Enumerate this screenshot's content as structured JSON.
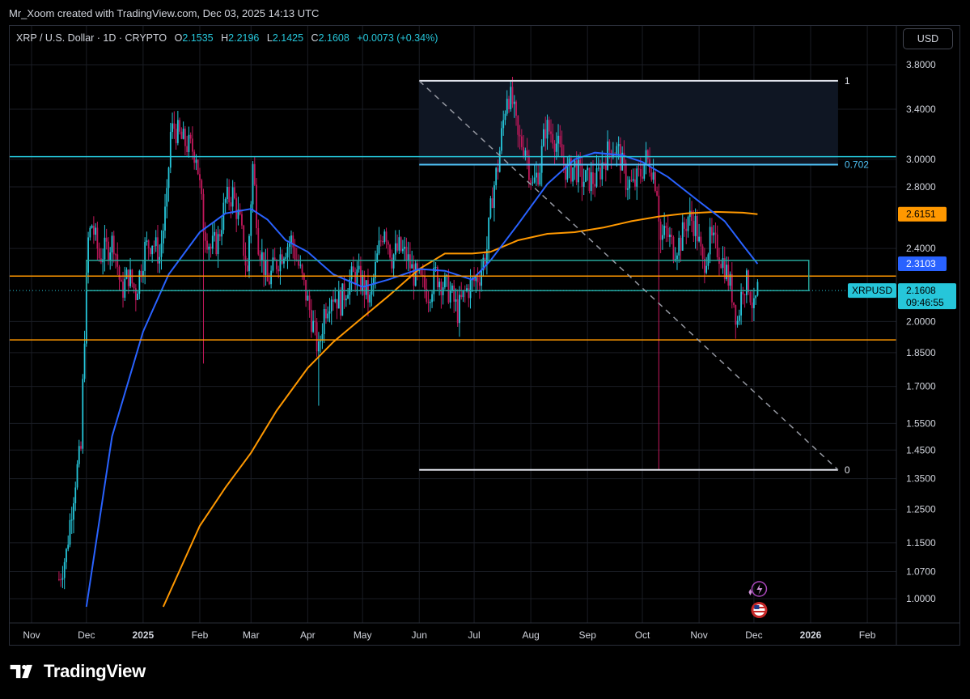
{
  "attribution": "Mr_Xoom created with TradingView.com, Dec 03, 2025 14:13 UTC",
  "header": {
    "symbol": "XRP / U.S. Dollar · 1D · CRYPTO",
    "o_label": "O",
    "o_value": "2.1535",
    "h_label": "H",
    "h_value": "2.2196",
    "l_label": "L",
    "l_value": "2.1425",
    "c_label": "C",
    "c_value": "2.1608",
    "change": "+0.0073 (+0.34%)"
  },
  "currency_button": "USD",
  "brand": "TradingView",
  "colors": {
    "bull": "#26c6da",
    "bear": "#c2185b",
    "ma_fast": "#2962ff",
    "ma_slow": "#ff9800",
    "grid": "#1a1d24",
    "text": "#d1d4dc",
    "fib": "#e0e3eb",
    "fib_702": "#4fc3f7",
    "box": "#26a69a"
  },
  "chart_data": {
    "type": "candlestick",
    "title": "XRP / U.S. Dollar · 1D · CRYPTO",
    "y_scale": "log",
    "ylim": [
      0.92,
      3.9
    ],
    "y_ticks": [
      "3.8000",
      "3.4000",
      "3.0000",
      "2.8000",
      "2.4000",
      "2.0000",
      "1.8500",
      "1.7000",
      "1.5500",
      "1.4500",
      "1.3500",
      "1.2500",
      "1.1500",
      "1.0700",
      "1.0000"
    ],
    "x_ticks": [
      {
        "label": "Nov",
        "date": "2024-11-01",
        "bold": false
      },
      {
        "label": "Dec",
        "date": "2024-12-01",
        "bold": false
      },
      {
        "label": "2025",
        "date": "2025-01-01",
        "bold": true
      },
      {
        "label": "Feb",
        "date": "2025-02-01",
        "bold": false
      },
      {
        "label": "Mar",
        "date": "2025-03-01",
        "bold": false
      },
      {
        "label": "Apr",
        "date": "2025-04-01",
        "bold": false
      },
      {
        "label": "May",
        "date": "2025-05-01",
        "bold": false
      },
      {
        "label": "Jun",
        "date": "2025-06-01",
        "bold": false
      },
      {
        "label": "Jul",
        "date": "2025-07-01",
        "bold": false
      },
      {
        "label": "Aug",
        "date": "2025-08-01",
        "bold": false
      },
      {
        "label": "Sep",
        "date": "2025-09-01",
        "bold": false
      },
      {
        "label": "Oct",
        "date": "2025-10-01",
        "bold": false
      },
      {
        "label": "Nov",
        "date": "2025-11-01",
        "bold": false
      },
      {
        "label": "Dec",
        "date": "2025-12-01",
        "bold": false
      },
      {
        "label": "2026",
        "date": "2026-01-01",
        "bold": true
      },
      {
        "label": "Feb",
        "date": "2026-02-01",
        "bold": false
      }
    ],
    "closes": [
      [
        "2024-11-16",
        1.05
      ],
      [
        "2024-11-20",
        1.12
      ],
      [
        "2024-11-25",
        1.35
      ],
      [
        "2024-11-28",
        1.45
      ],
      [
        "2024-12-02",
        2.45
      ],
      [
        "2024-12-04",
        2.55
      ],
      [
        "2024-12-08",
        2.35
      ],
      [
        "2024-12-12",
        2.4
      ],
      [
        "2024-12-16",
        2.45
      ],
      [
        "2024-12-20",
        2.15
      ],
      [
        "2024-12-24",
        2.25
      ],
      [
        "2024-12-28",
        2.15
      ],
      [
        "2025-01-02",
        2.4
      ],
      [
        "2025-01-06",
        2.45
      ],
      [
        "2025-01-10",
        2.35
      ],
      [
        "2025-01-14",
        2.7
      ],
      [
        "2025-01-16",
        3.2
      ],
      [
        "2025-01-18",
        3.25
      ],
      [
        "2025-01-22",
        3.15
      ],
      [
        "2025-01-26",
        3.1
      ],
      [
        "2025-01-30",
        3.05
      ],
      [
        "2025-02-03",
        2.55
      ],
      [
        "2025-02-07",
        2.4
      ],
      [
        "2025-02-11",
        2.45
      ],
      [
        "2025-02-15",
        2.7
      ],
      [
        "2025-02-19",
        2.75
      ],
      [
        "2025-02-23",
        2.55
      ],
      [
        "2025-02-27",
        2.25
      ],
      [
        "2025-03-02",
        2.95
      ],
      [
        "2025-03-05",
        2.45
      ],
      [
        "2025-03-10",
        2.2
      ],
      [
        "2025-03-14",
        2.3
      ],
      [
        "2025-03-19",
        2.4
      ],
      [
        "2025-03-23",
        2.45
      ],
      [
        "2025-03-27",
        2.3
      ],
      [
        "2025-04-01",
        2.1
      ],
      [
        "2025-04-07",
        1.85
      ],
      [
        "2025-04-10",
        2.05
      ],
      [
        "2025-04-14",
        2.15
      ],
      [
        "2025-04-19",
        2.1
      ],
      [
        "2025-04-23",
        2.2
      ],
      [
        "2025-04-27",
        2.25
      ],
      [
        "2025-05-01",
        2.2
      ],
      [
        "2025-05-05",
        2.1
      ],
      [
        "2025-05-10",
        2.4
      ],
      [
        "2025-05-13",
        2.55
      ],
      [
        "2025-05-17",
        2.35
      ],
      [
        "2025-05-21",
        2.4
      ],
      [
        "2025-05-25",
        2.35
      ],
      [
        "2025-05-29",
        2.25
      ],
      [
        "2025-06-02",
        2.2
      ],
      [
        "2025-06-06",
        2.15
      ],
      [
        "2025-06-10",
        2.25
      ],
      [
        "2025-06-14",
        2.2
      ],
      [
        "2025-06-18",
        2.15
      ],
      [
        "2025-06-22",
        2.05
      ],
      [
        "2025-06-26",
        2.15
      ],
      [
        "2025-06-30",
        2.2
      ],
      [
        "2025-07-04",
        2.25
      ],
      [
        "2025-07-08",
        2.4
      ],
      [
        "2025-07-11",
        2.75
      ],
      [
        "2025-07-14",
        2.95
      ],
      [
        "2025-07-17",
        3.3
      ],
      [
        "2025-07-19",
        3.55
      ],
      [
        "2025-07-22",
        3.45
      ],
      [
        "2025-07-25",
        3.15
      ],
      [
        "2025-07-29",
        3.1
      ],
      [
        "2025-08-02",
        2.8
      ],
      [
        "2025-08-06",
        2.95
      ],
      [
        "2025-08-09",
        3.25
      ],
      [
        "2025-08-13",
        3.2
      ],
      [
        "2025-08-17",
        3.05
      ],
      [
        "2025-08-21",
        2.9
      ],
      [
        "2025-08-25",
        2.95
      ],
      [
        "2025-08-29",
        2.85
      ],
      [
        "2025-09-02",
        2.85
      ],
      [
        "2025-09-06",
        2.85
      ],
      [
        "2025-09-10",
        3.0
      ],
      [
        "2025-09-14",
        3.1
      ],
      [
        "2025-09-18",
        3.05
      ],
      [
        "2025-09-22",
        2.85
      ],
      [
        "2025-09-26",
        2.8
      ],
      [
        "2025-09-30",
        2.9
      ],
      [
        "2025-10-03",
        3.0
      ],
      [
        "2025-10-06",
        2.95
      ],
      [
        "2025-10-09",
        2.8
      ],
      [
        "2025-10-11",
        2.45
      ],
      [
        "2025-10-14",
        2.5
      ],
      [
        "2025-10-18",
        2.4
      ],
      [
        "2025-10-22",
        2.45
      ],
      [
        "2025-10-26",
        2.6
      ],
      [
        "2025-10-30",
        2.55
      ],
      [
        "2025-11-03",
        2.3
      ],
      [
        "2025-11-07",
        2.45
      ],
      [
        "2025-11-11",
        2.4
      ],
      [
        "2025-11-15",
        2.3
      ],
      [
        "2025-11-19",
        2.15
      ],
      [
        "2025-11-22",
        2.0
      ],
      [
        "2025-11-25",
        2.2
      ],
      [
        "2025-11-28",
        2.2
      ],
      [
        "2025-12-01",
        2.05
      ],
      [
        "2025-12-03",
        2.16
      ]
    ],
    "ma_fast": [
      [
        "2024-12-01",
        0.98
      ],
      [
        "2024-12-15",
        1.5
      ],
      [
        "2025-01-01",
        1.95
      ],
      [
        "2025-01-15",
        2.25
      ],
      [
        "2025-02-01",
        2.5
      ],
      [
        "2025-02-15",
        2.62
      ],
      [
        "2025-03-01",
        2.65
      ],
      [
        "2025-03-10",
        2.58
      ],
      [
        "2025-03-20",
        2.45
      ],
      [
        "2025-04-01",
        2.38
      ],
      [
        "2025-04-15",
        2.25
      ],
      [
        "2025-05-01",
        2.18
      ],
      [
        "2025-05-15",
        2.22
      ],
      [
        "2025-06-01",
        2.28
      ],
      [
        "2025-06-15",
        2.27
      ],
      [
        "2025-06-30",
        2.22
      ],
      [
        "2025-07-10",
        2.33
      ],
      [
        "2025-07-25",
        2.55
      ],
      [
        "2025-08-10",
        2.82
      ],
      [
        "2025-08-25",
        3.0
      ],
      [
        "2025-09-05",
        3.05
      ],
      [
        "2025-09-20",
        3.03
      ],
      [
        "2025-10-01",
        2.98
      ],
      [
        "2025-10-15",
        2.87
      ],
      [
        "2025-11-01",
        2.7
      ],
      [
        "2025-11-15",
        2.57
      ],
      [
        "2025-11-25",
        2.42
      ],
      [
        "2025-12-03",
        2.31
      ]
    ],
    "ma_slow": [
      [
        "2025-01-12",
        0.98
      ],
      [
        "2025-02-01",
        1.2
      ],
      [
        "2025-02-15",
        1.32
      ],
      [
        "2025-03-01",
        1.44
      ],
      [
        "2025-03-15",
        1.6
      ],
      [
        "2025-04-01",
        1.78
      ],
      [
        "2025-04-15",
        1.9
      ],
      [
        "2025-05-01",
        2.02
      ],
      [
        "2025-05-15",
        2.13
      ],
      [
        "2025-06-01",
        2.28
      ],
      [
        "2025-06-15",
        2.37
      ],
      [
        "2025-06-30",
        2.37
      ],
      [
        "2025-07-10",
        2.38
      ],
      [
        "2025-07-25",
        2.45
      ],
      [
        "2025-08-10",
        2.49
      ],
      [
        "2025-08-25",
        2.5
      ],
      [
        "2025-09-10",
        2.53
      ],
      [
        "2025-09-25",
        2.57
      ],
      [
        "2025-10-10",
        2.6
      ],
      [
        "2025-10-25",
        2.62
      ],
      [
        "2025-11-10",
        2.63
      ],
      [
        "2025-11-25",
        2.625
      ],
      [
        "2025-12-03",
        2.615
      ]
    ],
    "drawings": {
      "fib_level_1": {
        "label": "1",
        "price": 3.65,
        "from": "2025-06-01",
        "to": "2026-01-16"
      },
      "fib_level_702": {
        "label": "0.702",
        "price": 2.96,
        "from": "2025-06-01",
        "to": "2026-01-16"
      },
      "fib_level_0": {
        "label": "0",
        "price": 1.38,
        "from": "2025-06-01",
        "to": "2026-01-16"
      },
      "fib_diagonal": {
        "from": [
          "2025-06-01",
          3.65
        ],
        "to": [
          "2026-01-16",
          1.38
        ]
      },
      "resistance_line": {
        "price": 3.02,
        "from": "2024-10-13",
        "to": "2026-02-23"
      },
      "support_upper": {
        "price": 2.24
      },
      "support_lower": {
        "price": 1.91
      },
      "range_box": {
        "top": 2.33,
        "bottom": 2.16,
        "from": "2024-12-01",
        "to": "2025-12-31"
      }
    },
    "price_labels": {
      "ma_slow_value": "2.6151",
      "ma_fast_value": "2.3103",
      "symbol": "XRPUSD",
      "last_price": "2.1608",
      "countdown": "09:46:55"
    },
    "events": [
      "spark-icon",
      "us-flag-icon"
    ]
  }
}
